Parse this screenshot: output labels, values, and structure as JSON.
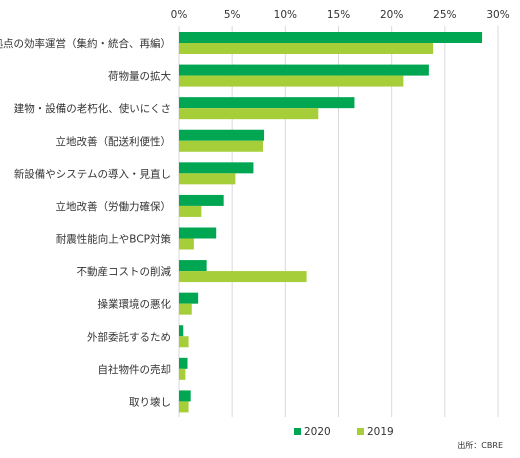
{
  "chart_data": {
    "type": "bar",
    "orientation": "horizontal",
    "categories": [
      "拠点の効率運営（集約・統合、再編）",
      "荷物量の拡大",
      "建物・設備の老朽化、使いにくさ",
      "立地改善（配送利便性）",
      "新設備やシステムの導入・見直し",
      "立地改善（労働力確保）",
      "耐震性能向上やBCP対策",
      "不動産コストの削減",
      "操業環境の悪化",
      "外部委託するため",
      "自社物件の売却",
      "取り壊し"
    ],
    "series": [
      {
        "name": "2020",
        "color": "#00a651",
        "values": [
          28.5,
          23.5,
          16.5,
          8,
          7,
          4.2,
          3.5,
          2.6,
          1.8,
          0.4,
          0.8,
          1.1
        ]
      },
      {
        "name": "2019",
        "color": "#a6ce39",
        "values": [
          23.9,
          21.1,
          13.1,
          7.9,
          5.3,
          2.1,
          1.4,
          12,
          1.2,
          0.9,
          0.6,
          0.9
        ]
      }
    ],
    "xlim": [
      0,
      30
    ],
    "x_ticks": [
      "0%",
      "5%",
      "10%",
      "15%",
      "20%",
      "25%",
      "30%"
    ],
    "x_axis_position": "top",
    "grid": true,
    "legend_position": "bottom-center",
    "source": "出所：CBRE"
  }
}
